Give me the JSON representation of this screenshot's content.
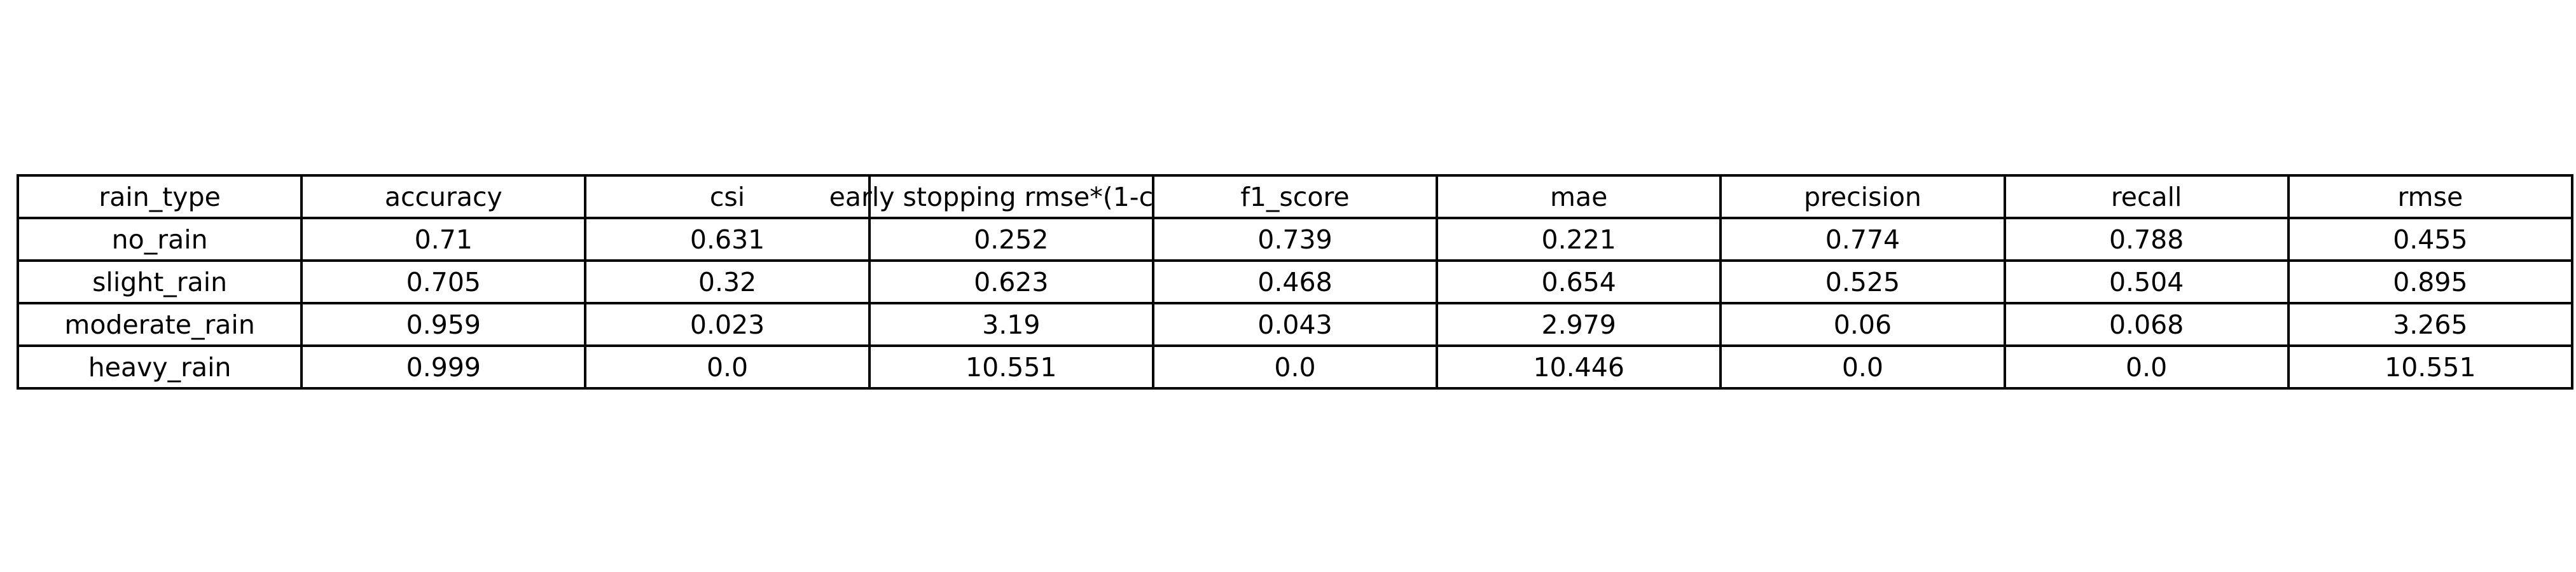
{
  "chart_data": {
    "type": "table",
    "columns": [
      "rain_type",
      "accuracy",
      "csi",
      "early stopping rmse*(1-c",
      "f1_score",
      "mae",
      "precision",
      "recall",
      "rmse"
    ],
    "rows": [
      [
        "no_rain",
        "0.71",
        "0.631",
        "0.252",
        "0.739",
        "0.221",
        "0.774",
        "0.788",
        "0.455"
      ],
      [
        "slight_rain",
        "0.705",
        "0.32",
        "0.623",
        "0.468",
        "0.654",
        "0.525",
        "0.504",
        "0.895"
      ],
      [
        "moderate_rain",
        "0.959",
        "0.023",
        "3.19",
        "0.043",
        "2.979",
        "0.06",
        "0.068",
        "3.265"
      ],
      [
        "heavy_rain",
        "0.999",
        "0.0",
        "10.551",
        "0.0",
        "10.446",
        "0.0",
        "0.0",
        "10.551"
      ]
    ]
  }
}
